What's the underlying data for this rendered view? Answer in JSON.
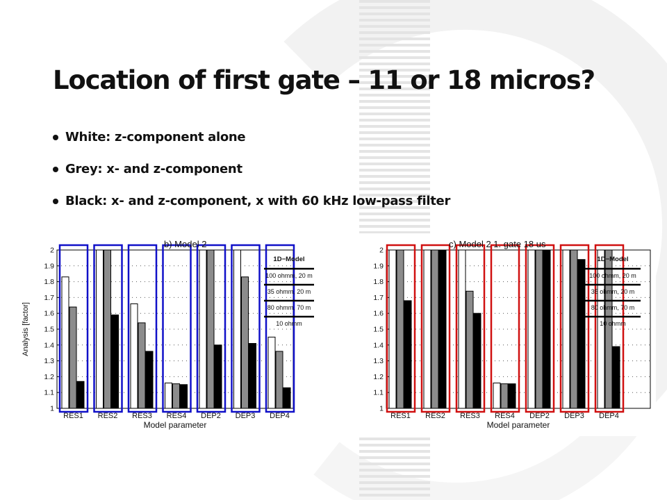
{
  "slide": {
    "title": "Location of first gate – 11 or 18 micros?",
    "bullets": [
      "White: z-component alone",
      "Grey: x- and z-component",
      "Black: x- and z-component, x with 60 kHz low-pass filter"
    ]
  },
  "colors": {
    "white_bar": "#ffffff",
    "grey_bar": "#8c8c8c",
    "black_bar": "#000000",
    "highlight_b": "#1010c8",
    "highlight_c": "#d01010",
    "background_stripes": "#e4e4e4"
  },
  "chart_data": [
    {
      "type": "bar",
      "title": "b)   Model 2",
      "xlabel": "Model parameter",
      "ylabel": "Analysis [factor]",
      "categories": [
        "RES1",
        "RES2",
        "RES3",
        "RES4",
        "DEP2",
        "DEP3",
        "DEP4"
      ],
      "ylim": [
        1,
        2
      ],
      "yticks": [
        "1",
        "1.1",
        "1.2",
        "1.3",
        "1.4",
        "1.5",
        "1.6",
        "1.7",
        "1.8",
        "1.9",
        "2"
      ],
      "grid": "dotted",
      "series": [
        {
          "values": [
            1.83,
            2.0,
            1.66,
            1.16,
            2.0,
            2.0,
            1.45
          ]
        },
        {
          "values": [
            1.64,
            2.0,
            1.54,
            1.155,
            2.0,
            1.83,
            1.36
          ]
        },
        {
          "values": [
            1.17,
            1.59,
            1.36,
            1.15,
            1.4,
            1.41,
            1.13
          ]
        }
      ],
      "legend": {
        "title": "1D−Model",
        "entries": [
          "100 ohmm, 20 m",
          "35 ohmm, 20 m",
          "80 ohmm, 70 m",
          "10 ohmm"
        ],
        "placement": "right"
      },
      "highlight_color": "blue"
    },
    {
      "type": "bar",
      "title": "c)   Model 2 1. gate 18 us",
      "xlabel": "Model parameter",
      "ylabel": "",
      "categories": [
        "RES1",
        "RES2",
        "RES3",
        "RES4",
        "DEP2",
        "DEP3",
        "DEP4"
      ],
      "ylim": [
        1,
        2
      ],
      "yticks": [
        "1",
        "1.1",
        "1.2",
        "1.3",
        "1.4",
        "1.5",
        "1.6",
        "1.7",
        "1.8",
        "1.9",
        "2"
      ],
      "grid": "dotted",
      "series": [
        {
          "values": [
            2.0,
            2.0,
            2.0,
            1.16,
            2.0,
            2.0,
            2.0
          ]
        },
        {
          "values": [
            2.0,
            2.0,
            1.74,
            1.155,
            2.0,
            2.0,
            2.0
          ]
        },
        {
          "values": [
            1.68,
            2.0,
            1.6,
            1.155,
            2.0,
            1.94,
            1.39
          ]
        }
      ],
      "legend": {
        "title": "1D−Model",
        "entries": [
          "100 ohmm, 20 m",
          "35 ohmm, 20 m",
          "80 ohmm, 70 m",
          "10 ohmm"
        ],
        "placement": "right"
      },
      "highlight_color": "red"
    }
  ]
}
